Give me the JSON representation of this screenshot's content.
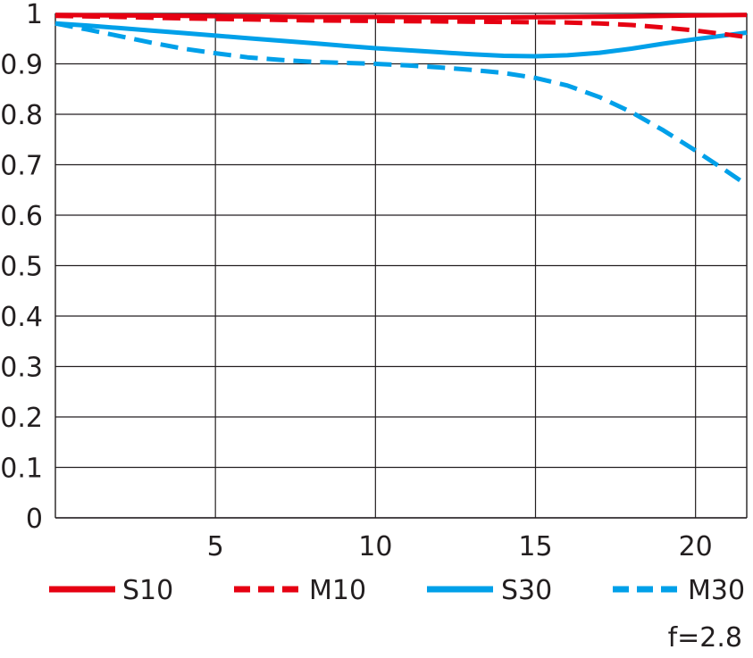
{
  "chart_data": {
    "type": "line",
    "title": "",
    "xlabel": "",
    "ylabel": "",
    "xlim": [
      0,
      21.6
    ],
    "ylim": [
      0,
      1
    ],
    "x_ticks": [
      5,
      10,
      15,
      20
    ],
    "y_ticks": [
      0,
      0.1,
      0.2,
      0.3,
      0.4,
      0.5,
      0.6,
      0.7,
      0.8,
      0.9,
      1
    ],
    "x_tick_labels": [
      "5",
      "10",
      "15",
      "20"
    ],
    "y_tick_labels": [
      "0",
      "0.1",
      "0.2",
      "0.3",
      "0.4",
      "0.5",
      "0.6",
      "0.7",
      "0.8",
      "0.9",
      "1"
    ],
    "grid": true,
    "legend_position": "bottom",
    "series": [
      {
        "name": "S10",
        "color": "#e60012",
        "dash": "solid",
        "x": [
          0,
          2,
          4,
          6,
          8,
          10,
          12,
          14,
          16,
          18,
          20,
          21.6
        ],
        "y": [
          0.997,
          0.996,
          0.995,
          0.994,
          0.993,
          0.993,
          0.992,
          0.992,
          0.993,
          0.994,
          0.996,
          0.997
        ]
      },
      {
        "name": "M10",
        "color": "#e60012",
        "dash": "dashed",
        "x": [
          0,
          2,
          4,
          6,
          8,
          10,
          12,
          14,
          16,
          17,
          18,
          19,
          20,
          21,
          21.6
        ],
        "y": [
          0.995,
          0.993,
          0.99,
          0.988,
          0.986,
          0.985,
          0.984,
          0.983,
          0.982,
          0.98,
          0.977,
          0.972,
          0.966,
          0.958,
          0.953
        ]
      },
      {
        "name": "S30",
        "color": "#00a0e9",
        "dash": "solid",
        "x": [
          0,
          1,
          2,
          3,
          4,
          5,
          6,
          7,
          8,
          9,
          10,
          11,
          12,
          13,
          14,
          15,
          16,
          17,
          18,
          19,
          20,
          21,
          21.6
        ],
        "y": [
          0.98,
          0.976,
          0.971,
          0.966,
          0.961,
          0.956,
          0.951,
          0.946,
          0.941,
          0.936,
          0.931,
          0.927,
          0.923,
          0.919,
          0.916,
          0.915,
          0.917,
          0.922,
          0.93,
          0.94,
          0.949,
          0.957,
          0.962
        ]
      },
      {
        "name": "M30",
        "color": "#00a0e9",
        "dash": "dashed",
        "x": [
          0,
          1,
          2,
          3,
          4,
          5,
          6,
          7,
          8,
          9,
          10,
          11,
          12,
          13,
          14,
          15,
          16,
          17,
          18,
          19,
          20,
          21,
          21.6
        ],
        "y": [
          0.98,
          0.968,
          0.955,
          0.942,
          0.93,
          0.921,
          0.913,
          0.908,
          0.904,
          0.902,
          0.9,
          0.897,
          0.893,
          0.888,
          0.882,
          0.872,
          0.857,
          0.834,
          0.804,
          0.768,
          0.728,
          0.686,
          0.66
        ]
      }
    ]
  },
  "aperture_label": "f=2.8"
}
